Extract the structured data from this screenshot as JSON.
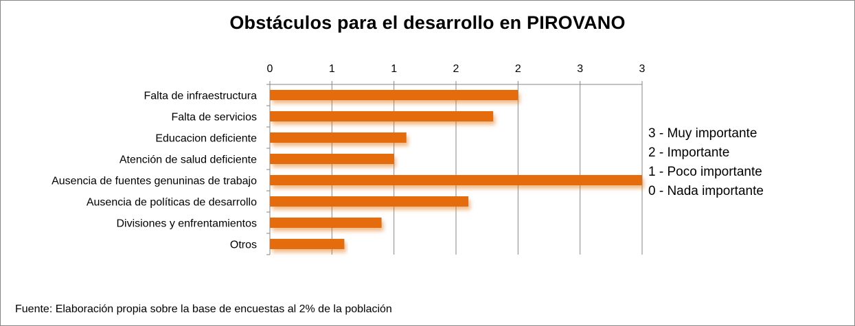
{
  "chart_data": {
    "type": "bar",
    "orientation": "horizontal",
    "title": "Obstáculos para el desarrollo en PIROVANO",
    "xlabel": "",
    "ylabel": "",
    "xlim": [
      0,
      3
    ],
    "x_ticks": [
      0,
      0.5,
      1,
      1.5,
      2,
      2.5,
      3
    ],
    "x_tick_labels": [
      "0",
      "1",
      "1",
      "2",
      "2",
      "3",
      "3"
    ],
    "grid": "vertical",
    "bar_color": "#E46C0A",
    "categories": [
      "Falta de infraestructura",
      "Falta de servicios",
      "Educacion deficiente",
      "Atención de salud deficiente",
      "Ausencia de fuentes genuninas de trabajo",
      "Ausencia de políticas de desarrollo",
      "Divisiones y enfrentamientos",
      "Otros"
    ],
    "values": [
      2.0,
      1.8,
      1.1,
      1.0,
      3.0,
      1.6,
      0.9,
      0.6
    ],
    "scale_legend": [
      "3 - Muy importante",
      "2 - Importante",
      "1 - Poco importante",
      "0 - Nada importante"
    ],
    "source_note": "Fuente: Elaboración propia sobre la base de encuestas al 2%  de la población"
  }
}
